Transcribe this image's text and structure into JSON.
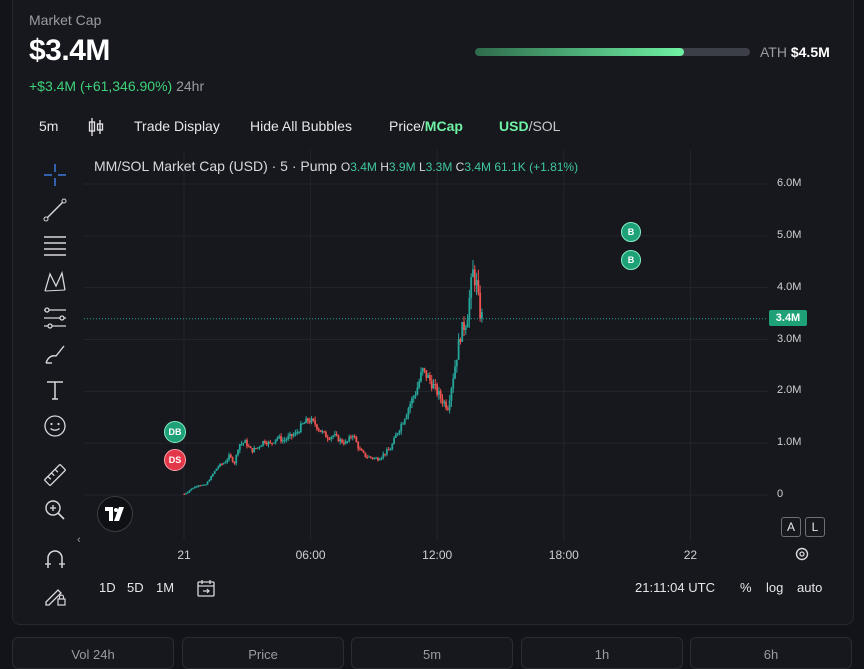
{
  "header": {
    "label": "Market Cap",
    "value": "$3.4M",
    "change_pos": "+$3.4M (+61,346.90%)",
    "change_period": "24hr",
    "ath_label": "ATH",
    "ath_value": "$4.5M",
    "ath_progress": 0.76
  },
  "toolbar": {
    "interval": "5m",
    "trade_display": "Trade Display",
    "hide_bubbles": "Hide All Bubbles",
    "price": "Price",
    "slash": "/",
    "mcap": "MCap",
    "usd": "USD",
    "sol": "/SOL"
  },
  "legend": {
    "title": "MM/SOL Market Cap (USD) · 5 · Pump",
    "o_k": "O",
    "o_v": "3.4M",
    "h_k": "H",
    "h_v": "3.9M",
    "l_k": "L",
    "l_v": "3.3M",
    "c_k": "C",
    "c_v": "3.4M",
    "delta": "61.1K (+1.81%)"
  },
  "bubbles": {
    "db": "DB",
    "ds": "DS",
    "b1": "B",
    "b2": "B"
  },
  "bottom": {
    "r1d": "1D",
    "r5d": "5D",
    "r1m": "1M",
    "time": "21:11:04 UTC",
    "pct": "%",
    "log": "log",
    "auto": "auto",
    "scale_a": "A",
    "scale_l": "L"
  },
  "cards": [
    "Vol 24h",
    "Price",
    "5m",
    "1h",
    "6h"
  ],
  "colors": {
    "up": "#26a69a",
    "down": "#ef5350",
    "accent": "#6ff2a4"
  },
  "chart_data": {
    "type": "candlestick",
    "title": "MM/SOL Market Cap (USD) · 5 · Pump",
    "x_ticks": [
      "21",
      "06:00",
      "12:00",
      "18:00",
      "22"
    ],
    "y_ticks": [
      "0",
      "1.0M",
      "2.0M",
      "3.0M",
      "4.0M",
      "5.0M",
      "6.0M"
    ],
    "ylim": [
      0,
      6000000
    ],
    "last_price_label": "3.4M",
    "last_price": 3400000,
    "close_path_millions": [
      [
        0.01,
        0.02
      ],
      [
        0.15,
        0.06
      ],
      [
        0.35,
        0.12
      ],
      [
        0.7,
        0.2
      ],
      [
        1.0,
        0.18
      ],
      [
        1.3,
        0.36
      ],
      [
        1.6,
        0.55
      ],
      [
        1.9,
        0.62
      ],
      [
        2.15,
        0.75
      ],
      [
        2.4,
        0.62
      ],
      [
        2.6,
        0.98
      ],
      [
        2.9,
        1.02
      ],
      [
        3.2,
        0.85
      ],
      [
        3.5,
        0.92
      ],
      [
        3.8,
        1.05
      ],
      [
        4.1,
        0.98
      ],
      [
        4.4,
        1.12
      ],
      [
        4.7,
        1.05
      ],
      [
        5.0,
        1.12
      ],
      [
        5.3,
        1.18
      ],
      [
        5.6,
        1.35
      ],
      [
        5.9,
        1.45
      ],
      [
        6.2,
        1.38
      ],
      [
        6.5,
        1.22
      ],
      [
        6.8,
        1.12
      ],
      [
        7.1,
        1.15
      ],
      [
        7.4,
        1.05
      ],
      [
        7.7,
        1.0
      ],
      [
        8.0,
        1.18
      ],
      [
        8.3,
        0.88
      ],
      [
        8.6,
        0.75
      ],
      [
        8.9,
        0.72
      ],
      [
        9.2,
        0.7
      ],
      [
        9.5,
        0.8
      ],
      [
        9.8,
        0.9
      ],
      [
        10.1,
        1.2
      ],
      [
        10.4,
        1.45
      ],
      [
        10.7,
        1.75
      ],
      [
        11.0,
        2.0
      ],
      [
        11.3,
        2.4
      ],
      [
        11.6,
        2.25
      ],
      [
        11.9,
        2.05
      ],
      [
        12.2,
        1.85
      ],
      [
        12.5,
        1.7
      ],
      [
        12.8,
        2.4
      ],
      [
        13.1,
        3.1
      ],
      [
        13.4,
        3.4
      ],
      [
        13.7,
        4.3
      ],
      [
        13.85,
        4.1
      ],
      [
        14.0,
        3.55
      ],
      [
        14.15,
        3.4
      ]
    ]
  }
}
